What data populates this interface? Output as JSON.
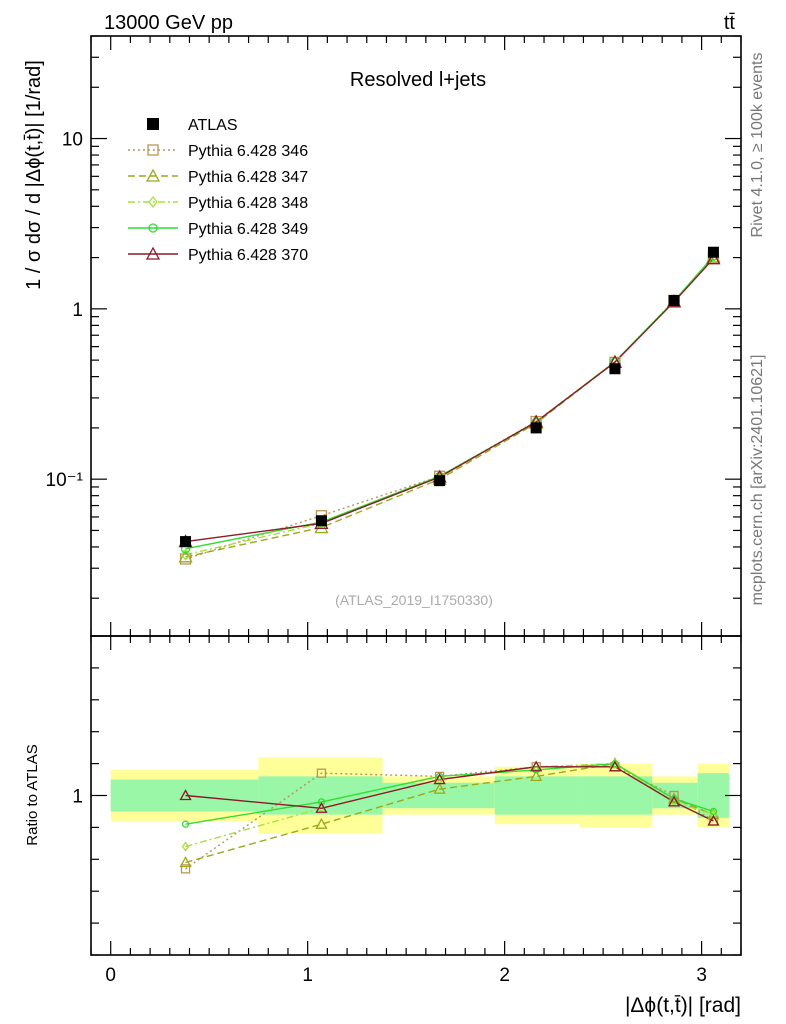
{
  "chart_data": {
    "type": "line",
    "header_left": "13000 GeV pp",
    "header_right": "tt̄",
    "title": "Resolved l+jets",
    "watermark": "(ATLAS_2019_I1750330)",
    "side_text_top": "Rivet 4.1.0, ≥ 100k events",
    "side_text_bottom": "mcplots.cern.ch [arXiv:2401.10621]",
    "ylabel": "1 / σ dσ / d |Δϕ(t,t̄)| [1/rad]",
    "ratio_ylabel": "Ratio to ATLAS",
    "xlabel": "|Δϕ(t,t̄)| [rad]",
    "xlim": [
      -0.1,
      3.2
    ],
    "ylim_log": [
      0.012,
      40
    ],
    "ratio_ylim": [
      0.5,
      1.5
    ],
    "x_ticks": [
      0,
      1,
      2,
      3
    ],
    "x_tick_labels": [
      "0",
      "1",
      "2",
      "3"
    ],
    "y_major_ticks": [
      0.1,
      1,
      10
    ],
    "y_tick_labels": [
      "10⁻¹",
      "1",
      "10"
    ],
    "ratio_tick_value": 1,
    "ratio_tick_label": "1",
    "bins": [
      [
        0,
        0.75
      ],
      [
        0.75,
        1.38
      ],
      [
        1.38,
        1.95
      ],
      [
        1.95,
        2.38
      ],
      [
        2.38,
        2.75
      ],
      [
        2.75,
        2.98
      ],
      [
        2.98,
        3.14
      ]
    ],
    "x": [
      0.38,
      1.07,
      1.67,
      2.16,
      2.56,
      2.86,
      3.06
    ],
    "data": {
      "name": "ATLAS",
      "values": [
        0.043,
        0.057,
        0.098,
        0.2,
        0.445,
        1.12,
        2.15
      ],
      "band_inner": [
        0.05,
        0.06,
        0.04,
        0.06,
        0.06,
        0.04,
        0.07
      ],
      "band_outer": [
        0.08,
        0.12,
        0.06,
        0.09,
        0.1,
        0.06,
        0.1
      ]
    },
    "series": [
      {
        "name": "Pythia 6.428 346",
        "color": "#b8945a",
        "dash": "2,3",
        "marker": "square",
        "values": [
          0.034,
          0.061,
          0.104,
          0.218,
          0.485,
          1.12,
          1.98
        ],
        "ratio": [
          0.77,
          1.07,
          1.06,
          1.09,
          1.09,
          1.0,
          0.92
        ]
      },
      {
        "name": "Pythia 6.428 347",
        "color": "#9aaa1c",
        "dash": "7,4",
        "marker": "triangle",
        "values": [
          0.035,
          0.052,
          0.1,
          0.213,
          0.488,
          1.11,
          2.02
        ],
        "ratio": [
          0.79,
          0.91,
          1.02,
          1.06,
          1.1,
          0.99,
          0.94
        ]
      },
      {
        "name": "Pythia 6.428 348",
        "color": "#a8e03c",
        "dash": "7,3,2,3",
        "marker": "diamond",
        "values": [
          0.036,
          0.055,
          0.103,
          0.217,
          0.489,
          1.1,
          2.03
        ],
        "ratio": [
          0.84,
          0.96,
          1.05,
          1.09,
          1.1,
          0.98,
          0.94
        ]
      },
      {
        "name": "Pythia 6.428 349",
        "color": "#33dd33",
        "dash": "",
        "marker": "circle",
        "values": [
          0.039,
          0.056,
          0.104,
          0.216,
          0.49,
          1.11,
          2.04
        ],
        "ratio": [
          0.91,
          0.98,
          1.06,
          1.08,
          1.1,
          0.99,
          0.95
        ]
      },
      {
        "name": "Pythia 6.428 370",
        "color": "#8b1a2b",
        "dash": "",
        "marker": "triangle",
        "values": [
          0.043,
          0.055,
          0.103,
          0.217,
          0.486,
          1.1,
          1.97
        ],
        "ratio": [
          1.0,
          0.96,
          1.05,
          1.09,
          1.09,
          0.98,
          0.92
        ]
      }
    ]
  }
}
